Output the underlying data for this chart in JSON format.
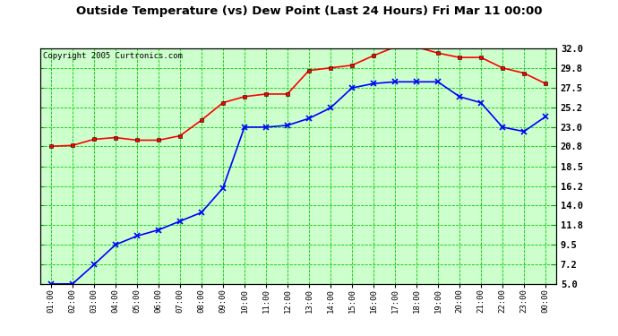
{
  "title": "Outside Temperature (vs) Dew Point (Last 24 Hours) Fri Mar 11 00:00",
  "copyright": "Copyright 2005 Curtronics.com",
  "x_labels": [
    "01:00",
    "02:00",
    "03:00",
    "04:00",
    "05:00",
    "06:00",
    "07:00",
    "08:00",
    "09:00",
    "10:00",
    "11:00",
    "12:00",
    "13:00",
    "14:00",
    "15:00",
    "16:00",
    "17:00",
    "18:00",
    "19:00",
    "20:00",
    "21:00",
    "22:00",
    "23:00",
    "00:00"
  ],
  "y_ticks": [
    5.0,
    7.2,
    9.5,
    11.8,
    14.0,
    16.2,
    18.5,
    20.8,
    23.0,
    25.2,
    27.5,
    29.8,
    32.0
  ],
  "y_min": 5.0,
  "y_max": 32.0,
  "temp_color": "#ff0000",
  "dew_color": "#0000ff",
  "bg_color": "#ccffcc",
  "grid_color": "#00cc00",
  "outer_bg": "#ffffff",
  "temp_data": [
    20.8,
    20.9,
    21.6,
    21.8,
    21.5,
    21.5,
    22.0,
    23.8,
    25.8,
    26.5,
    26.8,
    26.8,
    29.5,
    29.8,
    30.1,
    31.2,
    32.2,
    32.2,
    31.5,
    31.0,
    31.0,
    29.8,
    29.2,
    28.0
  ],
  "dew_data": [
    5.0,
    5.0,
    7.2,
    9.5,
    10.5,
    11.2,
    12.2,
    13.2,
    16.0,
    23.0,
    23.0,
    23.2,
    24.0,
    25.2,
    27.5,
    28.0,
    28.2,
    28.2,
    28.2,
    26.5,
    25.8,
    23.0,
    22.5,
    24.2
  ]
}
